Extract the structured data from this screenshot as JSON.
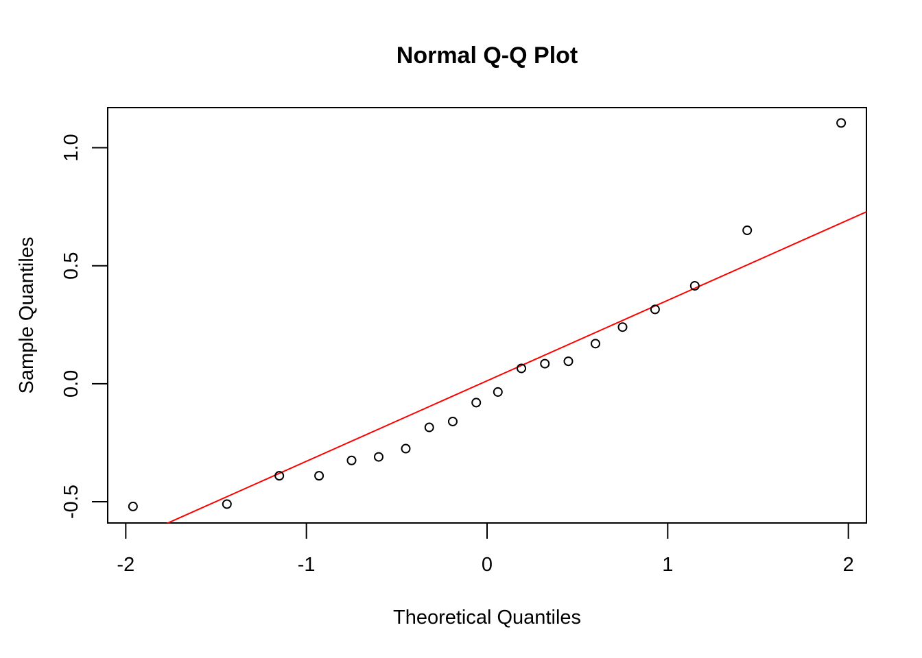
{
  "chart_data": {
    "type": "scatter",
    "title": "Normal Q-Q Plot",
    "xlabel": "Theoretical Quantiles",
    "ylabel": "Sample Quantiles",
    "xlim": [
      -2.1,
      2.1
    ],
    "ylim": [
      -0.59,
      1.17
    ],
    "x_ticks": [
      -2,
      -1,
      0,
      1,
      2
    ],
    "x_tick_labels": [
      "-2",
      "-1",
      "0",
      "1",
      "2"
    ],
    "y_ticks": [
      -0.5,
      0.0,
      0.5,
      1.0
    ],
    "y_tick_labels": [
      "-0.5",
      "0.0",
      "0.5",
      "1.0"
    ],
    "grid": false,
    "series": [
      {
        "marker": "open-circle",
        "color": "#000000",
        "points": [
          {
            "x": -1.96,
            "y": -0.52
          },
          {
            "x": -1.44,
            "y": -0.51
          },
          {
            "x": -1.15,
            "y": -0.39
          },
          {
            "x": -0.93,
            "y": -0.39
          },
          {
            "x": -0.75,
            "y": -0.325
          },
          {
            "x": -0.6,
            "y": -0.31
          },
          {
            "x": -0.45,
            "y": -0.275
          },
          {
            "x": -0.32,
            "y": -0.185
          },
          {
            "x": -0.19,
            "y": -0.16
          },
          {
            "x": -0.06,
            "y": -0.08
          },
          {
            "x": 0.06,
            "y": -0.035
          },
          {
            "x": 0.19,
            "y": 0.065
          },
          {
            "x": 0.32,
            "y": 0.085
          },
          {
            "x": 0.45,
            "y": 0.095
          },
          {
            "x": 0.6,
            "y": 0.17
          },
          {
            "x": 0.75,
            "y": 0.24
          },
          {
            "x": 0.93,
            "y": 0.315
          },
          {
            "x": 1.15,
            "y": 0.415
          },
          {
            "x": 1.44,
            "y": 0.65
          },
          {
            "x": 1.96,
            "y": 1.105
          }
        ]
      }
    ],
    "reference_line": {
      "color": "#ff0000",
      "intercept": 0.0124,
      "slope": 0.341
    }
  }
}
